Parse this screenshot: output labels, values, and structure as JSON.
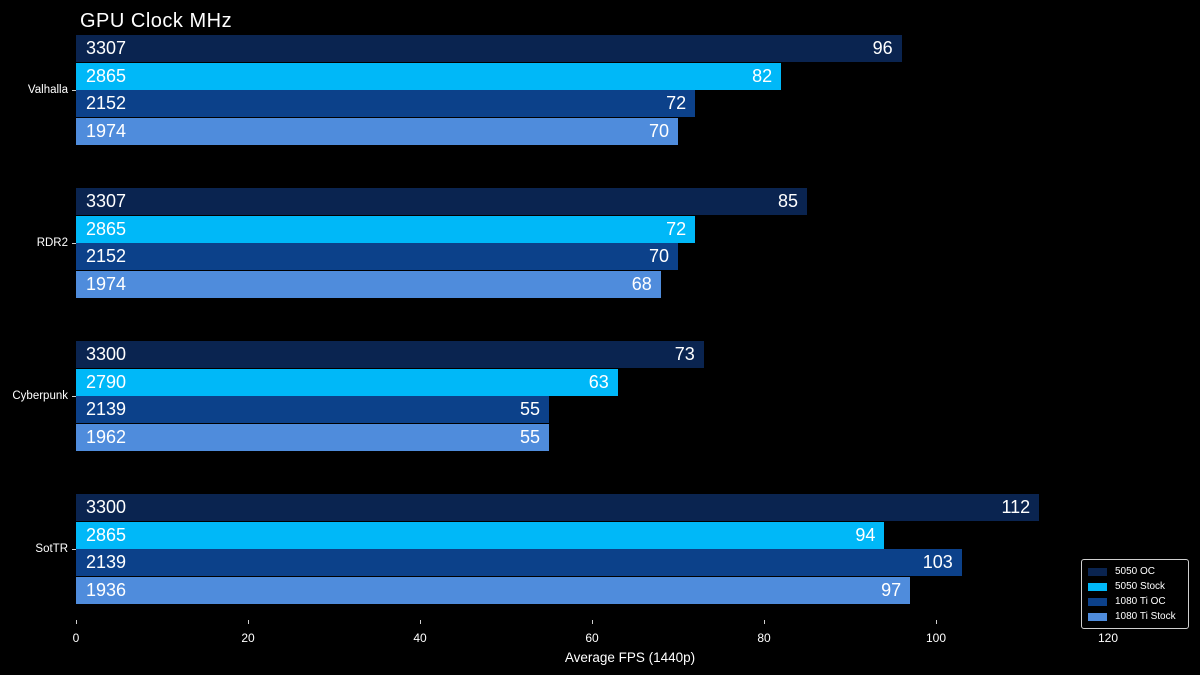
{
  "title": "GPU Clock MHz",
  "xlabel": "Average FPS (1440p)",
  "colors": {
    "background": "#000000",
    "text": "#ffffff",
    "tick": "#cfcfcf",
    "legend_border": "#d0d0d0"
  },
  "chart_data": {
    "type": "bar",
    "orientation": "horizontal",
    "title": "GPU Clock MHz",
    "xlabel": "Average FPS (1440p)",
    "xlim": [
      0,
      125
    ],
    "xticks": [
      0,
      20,
      40,
      60,
      80,
      100,
      120
    ],
    "grid": false,
    "legend_position": "lower right",
    "bar_label_left": "gpu_clock_mhz",
    "bar_label_right": "avg_fps",
    "categories": [
      "Valhalla",
      "RDR2",
      "Cyberpunk",
      "SotTR"
    ],
    "series": [
      {
        "name": "5050 OC",
        "color": "#0a2450",
        "values": [
          96,
          85,
          73,
          112
        ],
        "gpu_clock_mhz": [
          3307,
          3307,
          3300,
          3300
        ]
      },
      {
        "name": "5050 Stock",
        "color": "#00b8f8",
        "values": [
          82,
          72,
          63,
          94
        ],
        "gpu_clock_mhz": [
          2865,
          2865,
          2790,
          2865
        ]
      },
      {
        "name": "1080 Ti OC",
        "color": "#0c418a",
        "values": [
          72,
          70,
          55,
          103
        ],
        "gpu_clock_mhz": [
          2152,
          2152,
          2139,
          2139
        ]
      },
      {
        "name": "1080 Ti Stock",
        "color": "#4f8cdc",
        "values": [
          70,
          68,
          55,
          97
        ],
        "gpu_clock_mhz": [
          1974,
          1974,
          1962,
          1936
        ]
      }
    ]
  },
  "legend": {
    "items": [
      {
        "label": "5050 OC",
        "color": "#0a2450"
      },
      {
        "label": "5050 Stock",
        "color": "#00b8f8"
      },
      {
        "label": "1080 Ti OC",
        "color": "#0c418a"
      },
      {
        "label": "1080 Ti Stock",
        "color": "#4f8cdc"
      }
    ]
  }
}
